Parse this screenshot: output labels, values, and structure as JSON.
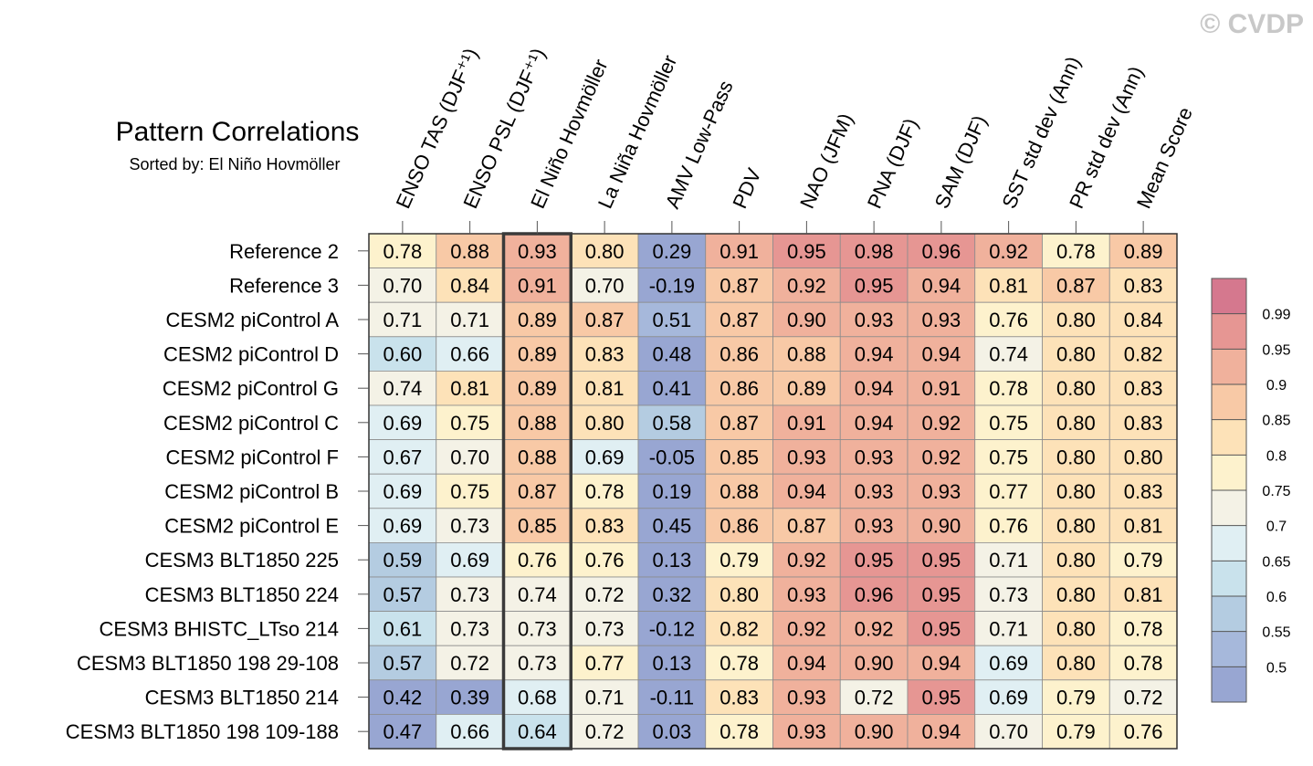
{
  "watermark": "© CVDP",
  "chart_data": {
    "type": "heatmap",
    "title": "Pattern Correlations",
    "subtitle": "Sorted by: El Niño Hovmöller",
    "highlighted_column": "El Niño Hovmöller",
    "columns": [
      "ENSO TAS (DJF⁺¹)",
      "ENSO PSL (DJF⁺¹)",
      "El Niño Hovmöller",
      "La Niña Hovmöller",
      "AMV Low-Pass",
      "PDV",
      "NAO (JFM)",
      "PNA (DJF)",
      "SAM (DJF)",
      "SST std dev (Ann)",
      "PR std dev (Ann)",
      "Mean Score"
    ],
    "rows": [
      "Reference 2",
      "Reference 3",
      "CESM2 piControl A",
      "CESM2 piControl D",
      "CESM2 piControl G",
      "CESM2 piControl C",
      "CESM2 piControl F",
      "CESM2 piControl B",
      "CESM2 piControl E",
      "CESM3 BLT1850 225",
      "CESM3 BLT1850 224",
      "CESM3 BHISTC_LTso 214",
      "CESM3 BLT1850 198 29-108",
      "CESM3 BLT1850 214",
      "CESM3 BLT1850 198 109-188"
    ],
    "values": [
      [
        "0.78",
        "0.88",
        "0.93",
        "0.80",
        "0.29",
        "0.91",
        "0.95",
        "0.98",
        "0.96",
        "0.92",
        "0.78",
        "0.89"
      ],
      [
        "0.70",
        "0.84",
        "0.91",
        "0.70",
        "-0.19",
        "0.87",
        "0.92",
        "0.95",
        "0.94",
        "0.81",
        "0.87",
        "0.83"
      ],
      [
        "0.71",
        "0.71",
        "0.89",
        "0.87",
        "0.51",
        "0.87",
        "0.90",
        "0.93",
        "0.93",
        "0.76",
        "0.80",
        "0.84"
      ],
      [
        "0.60",
        "0.66",
        "0.89",
        "0.83",
        "0.48",
        "0.86",
        "0.88",
        "0.94",
        "0.94",
        "0.74",
        "0.80",
        "0.82"
      ],
      [
        "0.74",
        "0.81",
        "0.89",
        "0.81",
        "0.41",
        "0.86",
        "0.89",
        "0.94",
        "0.91",
        "0.78",
        "0.80",
        "0.83"
      ],
      [
        "0.69",
        "0.75",
        "0.88",
        "0.80",
        "0.58",
        "0.87",
        "0.91",
        "0.94",
        "0.92",
        "0.75",
        "0.80",
        "0.83"
      ],
      [
        "0.67",
        "0.70",
        "0.88",
        "0.69",
        "-0.05",
        "0.85",
        "0.93",
        "0.93",
        "0.92",
        "0.75",
        "0.80",
        "0.80"
      ],
      [
        "0.69",
        "0.75",
        "0.87",
        "0.78",
        "0.19",
        "0.88",
        "0.94",
        "0.93",
        "0.93",
        "0.77",
        "0.80",
        "0.83"
      ],
      [
        "0.69",
        "0.73",
        "0.85",
        "0.83",
        "0.45",
        "0.86",
        "0.87",
        "0.93",
        "0.90",
        "0.76",
        "0.80",
        "0.81"
      ],
      [
        "0.59",
        "0.69",
        "0.76",
        "0.76",
        "0.13",
        "0.79",
        "0.92",
        "0.95",
        "0.95",
        "0.71",
        "0.80",
        "0.79"
      ],
      [
        "0.57",
        "0.73",
        "0.74",
        "0.72",
        "0.32",
        "0.80",
        "0.93",
        "0.96",
        "0.95",
        "0.73",
        "0.80",
        "0.81"
      ],
      [
        "0.61",
        "0.73",
        "0.73",
        "0.73",
        "-0.12",
        "0.82",
        "0.92",
        "0.92",
        "0.95",
        "0.71",
        "0.80",
        "0.78"
      ],
      [
        "0.57",
        "0.72",
        "0.73",
        "0.77",
        "0.13",
        "0.78",
        "0.94",
        "0.90",
        "0.94",
        "0.69",
        "0.80",
        "0.78"
      ],
      [
        "0.42",
        "0.39",
        "0.68",
        "0.71",
        "-0.11",
        "0.83",
        "0.93",
        "0.72",
        "0.95",
        "0.69",
        "0.79",
        "0.72"
      ],
      [
        "0.47",
        "0.66",
        "0.64",
        "0.72",
        "0.03",
        "0.78",
        "0.93",
        "0.90",
        "0.94",
        "0.70",
        "0.79",
        "0.76"
      ]
    ],
    "colorbar": {
      "labels": [
        "0.99",
        "0.95",
        "0.9",
        "0.85",
        "0.8",
        "0.75",
        "0.7",
        "0.65",
        "0.6",
        "0.55",
        "0.5"
      ],
      "thresholds": [
        0.99,
        0.95,
        0.9,
        0.85,
        0.8,
        0.75,
        0.7,
        0.65,
        0.6,
        0.55,
        0.5
      ],
      "colors": [
        "#d5788e",
        "#e69693",
        "#f0b19c",
        "#f8c9a6",
        "#fde2b8",
        "#fdf2cd",
        "#f4f2e6",
        "#e0eff3",
        "#c9e2ec",
        "#b4cce1",
        "#a6b8db",
        "#98a6d2"
      ]
    }
  }
}
